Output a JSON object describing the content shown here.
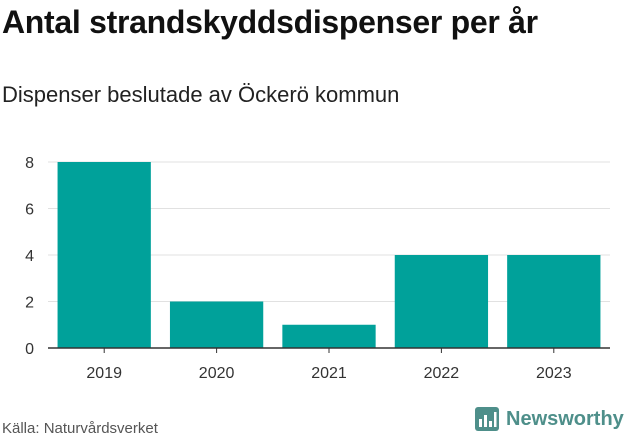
{
  "chart_data": {
    "type": "bar",
    "title": "Antal strandskyddsdispenser per år",
    "subtitle": "Dispenser beslutade av Öckerö kommun",
    "categories": [
      "2019",
      "2020",
      "2021",
      "2022",
      "2023"
    ],
    "values": [
      8,
      2,
      1,
      4,
      4
    ],
    "yticks": [
      0,
      2,
      4,
      6,
      8
    ],
    "ylim": [
      0,
      8
    ],
    "xlabel": "",
    "ylabel": "",
    "grid": true,
    "colors": {
      "bar": "#00a19a",
      "grid": "#e1e1e1",
      "axis": "#333333",
      "tick": "#333333"
    }
  },
  "footer": {
    "source": "Källa: Naturvårdsverket",
    "brand": "Newsworthy",
    "brand_color": "#4e8f8a",
    "brand_icon": "bar-chart-logo-icon"
  }
}
